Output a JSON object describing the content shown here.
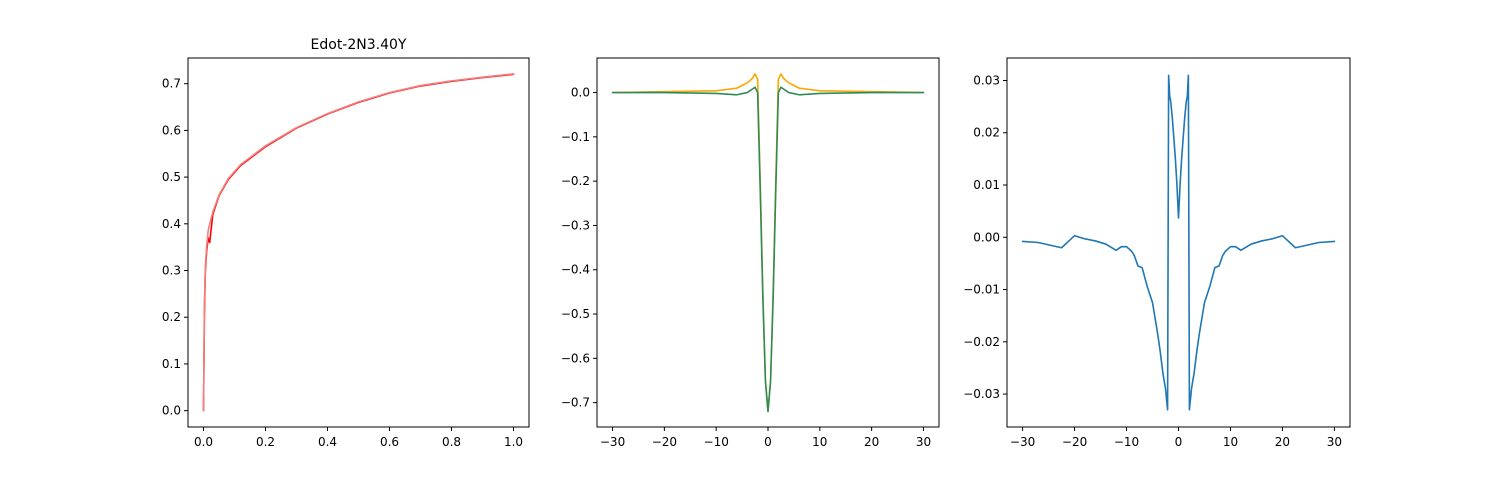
{
  "chart_data": [
    {
      "type": "line",
      "title": "Edot-2N3.40Y",
      "xlabel": "",
      "ylabel": "",
      "xlim": [
        -0.05,
        1.05
      ],
      "ylim": [
        -0.035,
        0.755
      ],
      "xticks": [
        0.0,
        0.2,
        0.4,
        0.6,
        0.8,
        1.0
      ],
      "xtick_labels": [
        "0.0",
        "0.2",
        "0.4",
        "0.6",
        "0.8",
        "1.0"
      ],
      "yticks": [
        0.0,
        0.1,
        0.2,
        0.3,
        0.4,
        0.5,
        0.6,
        0.7
      ],
      "ytick_labels": [
        "0.0",
        "0.1",
        "0.2",
        "0.3",
        "0.4",
        "0.5",
        "0.6",
        "0.7"
      ],
      "grid": false,
      "series": [
        {
          "color": "#ff0000",
          "x": [
            0.0,
            0.003,
            0.006,
            0.01,
            0.015,
            0.02,
            0.03,
            0.05,
            0.08,
            0.12,
            0.2,
            0.3,
            0.4,
            0.5,
            0.6,
            0.7,
            0.8,
            0.9,
            1.0
          ],
          "y": [
            0.0,
            0.21,
            0.3,
            0.34,
            0.37,
            0.36,
            0.42,
            0.46,
            0.495,
            0.525,
            0.565,
            0.605,
            0.635,
            0.66,
            0.68,
            0.695,
            0.705,
            0.713,
            0.72
          ]
        },
        {
          "color": "#f08080",
          "x": [
            0.0,
            0.003,
            0.006,
            0.01,
            0.015,
            0.02,
            0.03,
            0.05,
            0.08,
            0.12,
            0.2,
            0.3,
            0.4,
            0.5,
            0.6,
            0.7,
            0.8,
            0.9,
            1.0
          ],
          "y": [
            0.0,
            0.23,
            0.31,
            0.35,
            0.385,
            0.4,
            0.425,
            0.462,
            0.497,
            0.527,
            0.567,
            0.606,
            0.636,
            0.661,
            0.681,
            0.696,
            0.706,
            0.714,
            0.721
          ]
        }
      ]
    },
    {
      "type": "line",
      "title": "",
      "xlabel": "",
      "ylabel": "",
      "xlim": [
        -33,
        33
      ],
      "ylim": [
        -0.755,
        0.078
      ],
      "xticks": [
        -30,
        -20,
        -10,
        0,
        10,
        20,
        30
      ],
      "xtick_labels": [
        "−30",
        "−20",
        "−10",
        "0",
        "10",
        "20",
        "30"
      ],
      "yticks": [
        0.0,
        -0.1,
        -0.2,
        -0.3,
        -0.4,
        -0.5,
        -0.6,
        -0.7
      ],
      "ytick_labels": [
        "0.0",
        "−0.1",
        "−0.2",
        "−0.3",
        "−0.4",
        "−0.5",
        "−0.6",
        "−0.7"
      ],
      "grid": false,
      "series": [
        {
          "color": "#ffa500",
          "x": [
            -30,
            -20,
            -10,
            -6,
            -4,
            -3,
            -2.5,
            -2,
            -1.5,
            -1,
            -0.5,
            0,
            0.5,
            1,
            1.5,
            2,
            2.5,
            3,
            4,
            6,
            10,
            20,
            30
          ],
          "y": [
            0.0,
            0.002,
            0.004,
            0.01,
            0.022,
            0.032,
            0.042,
            0.03,
            -0.2,
            -0.45,
            -0.65,
            -0.72,
            -0.65,
            -0.45,
            -0.2,
            0.03,
            0.042,
            0.032,
            0.022,
            0.01,
            0.004,
            0.002,
            0.0
          ]
        },
        {
          "color": "#2e8b57",
          "x": [
            -30,
            -20,
            -10,
            -6,
            -4,
            -3,
            -2.5,
            -2,
            -1.5,
            -1,
            -0.5,
            0,
            0.5,
            1,
            1.5,
            2,
            2.5,
            3,
            4,
            6,
            10,
            20,
            30
          ],
          "y": [
            0.0,
            0.0,
            -0.002,
            -0.005,
            0.0,
            0.008,
            0.012,
            0.0,
            -0.22,
            -0.46,
            -0.65,
            -0.72,
            -0.65,
            -0.46,
            -0.22,
            0.0,
            0.012,
            0.008,
            0.0,
            -0.005,
            -0.002,
            0.0,
            0.0
          ]
        }
      ]
    },
    {
      "type": "line",
      "title": "",
      "xlabel": "",
      "ylabel": "",
      "xlim": [
        -33,
        33
      ],
      "ylim": [
        -0.0363,
        0.0343
      ],
      "xticks": [
        -30,
        -20,
        -10,
        0,
        10,
        20,
        30
      ],
      "xtick_labels": [
        "−30",
        "−20",
        "−10",
        "0",
        "10",
        "20",
        "30"
      ],
      "yticks": [
        0.03,
        0.02,
        0.01,
        0.0,
        -0.01,
        -0.02,
        -0.03
      ],
      "ytick_labels": [
        "0.03",
        "0.02",
        "0.01",
        "0.00",
        "−0.01",
        "−0.02",
        "−0.03"
      ],
      "grid": false,
      "series": [
        {
          "color": "#1f77b4",
          "x": [
            -30,
            -27,
            -22.5,
            -20,
            -18,
            -16,
            -14,
            -12,
            -11,
            -10,
            -9,
            -8.5,
            -7.8,
            -7,
            -6,
            -5,
            -4.5,
            -4,
            -3.5,
            -3,
            -2.5,
            -2.1,
            -1.9,
            -1.7,
            -1.5,
            -1.2,
            -0.9,
            -0.6,
            -0.3,
            0.0,
            0.3,
            0.6,
            0.9,
            1.2,
            1.5,
            1.7,
            1.9,
            2.1,
            2.5,
            3,
            3.5,
            4,
            4.5,
            5,
            6,
            7,
            7.8,
            8.5,
            9,
            10,
            11,
            12,
            14,
            16,
            18,
            20,
            22.5,
            27,
            30
          ],
          "y": [
            -0.0008,
            -0.001,
            -0.002,
            0.0003,
            -0.0003,
            -0.0007,
            -0.0013,
            -0.0025,
            -0.0018,
            -0.0018,
            -0.0027,
            -0.0035,
            -0.0055,
            -0.0058,
            -0.0095,
            -0.0125,
            -0.0155,
            -0.0185,
            -0.022,
            -0.026,
            -0.029,
            -0.033,
            0.031,
            0.027,
            0.026,
            0.023,
            0.019,
            0.015,
            0.01,
            0.0037,
            0.01,
            0.015,
            0.019,
            0.023,
            0.026,
            0.027,
            0.031,
            -0.033,
            -0.029,
            -0.026,
            -0.022,
            -0.0185,
            -0.0155,
            -0.0125,
            -0.0095,
            -0.0058,
            -0.0055,
            -0.0035,
            -0.0027,
            -0.0018,
            -0.0018,
            -0.0025,
            -0.0013,
            -0.0007,
            -0.0003,
            0.0003,
            -0.002,
            -0.001,
            -0.0008
          ]
        }
      ]
    }
  ]
}
